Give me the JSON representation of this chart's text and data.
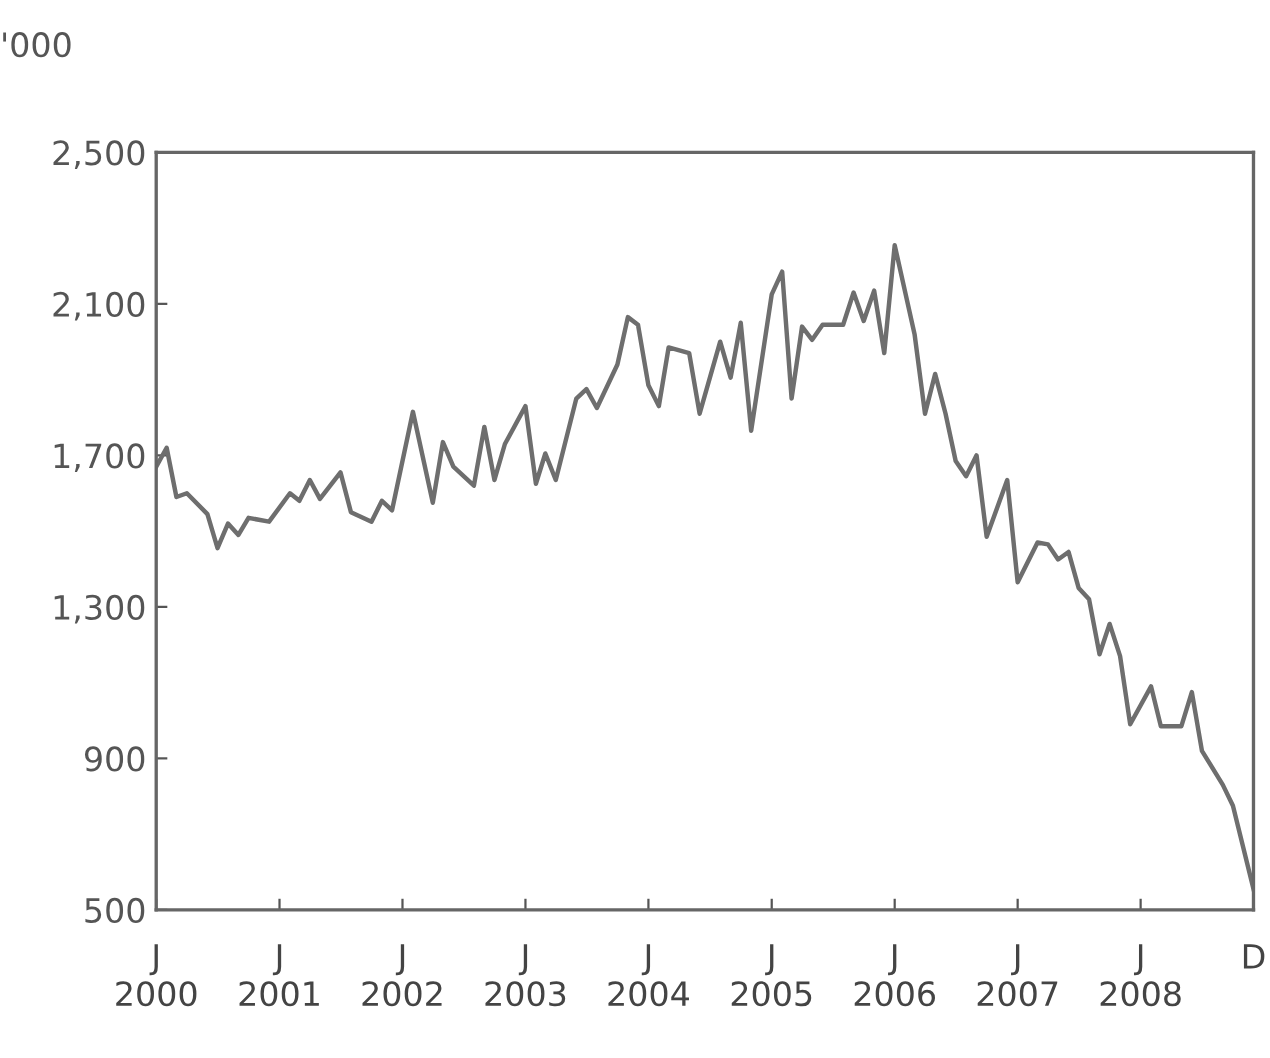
{
  "chart_data": {
    "type": "line",
    "ylabel": "'000",
    "grid": false,
    "legend": false,
    "marker": "none",
    "line_style": "solid",
    "x": [
      "2000-01",
      "2000-02",
      "2000-03",
      "2000-04",
      "2000-06",
      "2000-07",
      "2000-08",
      "2000-09",
      "2000-10",
      "2000-12",
      "2001-02",
      "2001-03",
      "2001-04",
      "2001-05",
      "2001-07",
      "2001-08",
      "2001-10",
      "2001-11",
      "2001-12",
      "2002-02",
      "2002-04",
      "2002-05",
      "2002-06",
      "2002-08",
      "2002-09",
      "2002-10",
      "2002-11",
      "2003-01",
      "2003-02",
      "2003-03",
      "2003-04",
      "2003-06",
      "2003-07",
      "2003-08",
      "2003-10",
      "2003-11",
      "2003-12",
      "2004-01",
      "2004-02",
      "2004-03",
      "2004-05",
      "2004-06",
      "2004-08",
      "2004-09",
      "2004-10",
      "2004-11",
      "2005-01",
      "2005-02",
      "2005-03",
      "2005-04",
      "2005-05",
      "2005-06",
      "2005-08",
      "2005-09",
      "2005-10",
      "2005-11",
      "2005-12",
      "2006-01",
      "2006-03",
      "2006-04",
      "2006-05",
      "2006-06",
      "2006-07",
      "2006-08",
      "2006-09",
      "2006-10",
      "2006-12",
      "2007-01",
      "2007-03",
      "2007-04",
      "2007-05",
      "2007-06",
      "2007-07",
      "2007-08",
      "2007-09",
      "2007-10",
      "2007-11",
      "2007-12",
      "2008-02",
      "2008-03",
      "2008-05",
      "2008-06",
      "2008-07",
      "2008-09",
      "2008-10",
      "2008-12"
    ],
    "series": [
      {
        "color": "#6e6e6e",
        "values": [
          1670,
          1720,
          1590,
          1600,
          1545,
          1455,
          1520,
          1490,
          1535,
          1525,
          1600,
          1580,
          1635,
          1585,
          1655,
          1550,
          1525,
          1580,
          1555,
          1815,
          1575,
          1735,
          1670,
          1620,
          1775,
          1635,
          1730,
          1830,
          1625,
          1705,
          1635,
          1850,
          1875,
          1825,
          1940,
          2065,
          2045,
          1885,
          1830,
          1985,
          1970,
          1810,
          2000,
          1905,
          2050,
          1765,
          2125,
          2185,
          1850,
          2040,
          2005,
          2045,
          2045,
          2130,
          2055,
          2135,
          1970,
          2255,
          2020,
          1810,
          1915,
          1810,
          1685,
          1645,
          1700,
          1485,
          1635,
          1365,
          1470,
          1465,
          1425,
          1445,
          1350,
          1320,
          1175,
          1255,
          1170,
          990,
          1090,
          985,
          985,
          1075,
          920,
          830,
          775,
          555
        ]
      }
    ],
    "xlim": [
      "2000-01",
      "2008-12"
    ],
    "xticks": [
      {
        "value": "2000-01",
        "label": "J\n2000"
      },
      {
        "value": "2001-01",
        "label": "J\n2001"
      },
      {
        "value": "2002-01",
        "label": "J\n2002"
      },
      {
        "value": "2003-01",
        "label": "J\n2003"
      },
      {
        "value": "2004-01",
        "label": "J\n2004"
      },
      {
        "value": "2005-01",
        "label": "J\n2005"
      },
      {
        "value": "2006-01",
        "label": "J\n2006"
      },
      {
        "value": "2007-01",
        "label": "J\n2007"
      },
      {
        "value": "2008-01",
        "label": "J\n2008"
      },
      {
        "value": "2008-12",
        "label": "D"
      }
    ],
    "ylim": [
      500,
      2500
    ],
    "yticks": [
      500,
      {
        "value": 900,
        "label": "900"
      },
      {
        "value": 1300,
        "label": "1,300"
      },
      {
        "value": 1700,
        "label": "1,700"
      },
      {
        "value": 2100,
        "label": "2,100"
      },
      {
        "value": 2500,
        "label": "2,500"
      }
    ]
  }
}
